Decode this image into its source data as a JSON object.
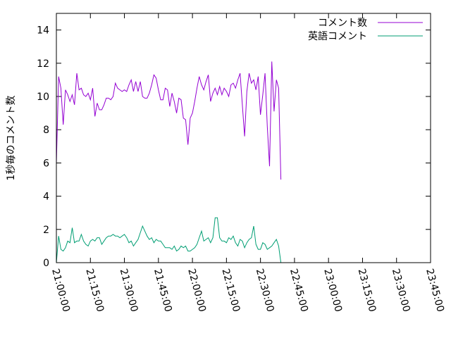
{
  "chart_data": {
    "type": "line",
    "title": "",
    "xlabel": "",
    "ylabel": "1秒毎のコメント数",
    "xlim": [
      "21:00:00",
      "23:45:00"
    ],
    "ylim": [
      0,
      15
    ],
    "x_ticks": [
      "21:00:00",
      "21:15:00",
      "21:30:00",
      "21:45:00",
      "22:00:00",
      "22:15:00",
      "22:30:00",
      "22:45:00",
      "23:00:00",
      "23:15:00",
      "23:30:00",
      "23:45:00"
    ],
    "y_ticks": [
      "0",
      "2",
      "4",
      "6",
      "8",
      "10",
      "12",
      "14"
    ],
    "legend_position": "top-right",
    "series": [
      {
        "name": "コメント数",
        "color": "#9400d3",
        "points": [
          [
            "21:00:00",
            6.0
          ],
          [
            "21:01:00",
            11.2
          ],
          [
            "21:02:00",
            10.5
          ],
          [
            "21:03:00",
            8.3
          ],
          [
            "21:04:00",
            10.4
          ],
          [
            "21:05:00",
            10.1
          ],
          [
            "21:06:00",
            9.7
          ],
          [
            "21:07:00",
            10.1
          ],
          [
            "21:08:00",
            9.5
          ],
          [
            "21:09:00",
            11.4
          ],
          [
            "21:10:00",
            10.4
          ],
          [
            "21:11:00",
            10.5
          ],
          [
            "21:12:00",
            10.1
          ],
          [
            "21:13:00",
            10.0
          ],
          [
            "21:14:00",
            10.2
          ],
          [
            "21:15:00",
            9.8
          ],
          [
            "21:16:00",
            10.5
          ],
          [
            "21:17:00",
            8.8
          ],
          [
            "21:18:00",
            9.6
          ],
          [
            "21:19:00",
            9.2
          ],
          [
            "21:20:00",
            9.2
          ],
          [
            "21:21:00",
            9.5
          ],
          [
            "21:22:00",
            9.9
          ],
          [
            "21:23:00",
            9.9
          ],
          [
            "21:24:00",
            9.8
          ],
          [
            "21:25:00",
            10.0
          ],
          [
            "21:26:00",
            10.8
          ],
          [
            "21:27:00",
            10.5
          ],
          [
            "21:28:00",
            10.4
          ],
          [
            "21:29:00",
            10.3
          ],
          [
            "21:30:00",
            10.4
          ],
          [
            "21:31:00",
            10.3
          ],
          [
            "21:32:00",
            10.7
          ],
          [
            "21:33:00",
            11.0
          ],
          [
            "21:34:00",
            10.3
          ],
          [
            "21:35:00",
            10.9
          ],
          [
            "21:36:00",
            10.3
          ],
          [
            "21:37:00",
            10.9
          ],
          [
            "21:38:00",
            10.0
          ],
          [
            "21:39:00",
            9.9
          ],
          [
            "21:40:00",
            9.9
          ],
          [
            "21:41:00",
            10.2
          ],
          [
            "21:42:00",
            10.7
          ],
          [
            "21:43:00",
            11.3
          ],
          [
            "21:44:00",
            11.1
          ],
          [
            "21:45:00",
            10.4
          ],
          [
            "21:46:00",
            9.8
          ],
          [
            "21:47:00",
            9.8
          ],
          [
            "21:48:00",
            10.5
          ],
          [
            "21:49:00",
            10.4
          ],
          [
            "21:50:00",
            9.4
          ],
          [
            "21:51:00",
            10.2
          ],
          [
            "21:52:00",
            9.7
          ],
          [
            "21:53:00",
            9.0
          ],
          [
            "21:54:00",
            9.9
          ],
          [
            "21:55:00",
            9.8
          ],
          [
            "21:56:00",
            8.7
          ],
          [
            "21:57:00",
            8.6
          ],
          [
            "21:58:00",
            7.1
          ],
          [
            "21:59:00",
            8.7
          ],
          [
            "22:00:00",
            9.0
          ],
          [
            "22:01:00",
            9.7
          ],
          [
            "22:02:00",
            10.5
          ],
          [
            "22:03:00",
            11.2
          ],
          [
            "22:04:00",
            10.7
          ],
          [
            "22:05:00",
            10.4
          ],
          [
            "22:06:00",
            10.9
          ],
          [
            "22:07:00",
            11.3
          ],
          [
            "22:08:00",
            9.7
          ],
          [
            "22:09:00",
            10.2
          ],
          [
            "22:10:00",
            10.5
          ],
          [
            "22:11:00",
            10.1
          ],
          [
            "22:12:00",
            10.6
          ],
          [
            "22:13:00",
            10.1
          ],
          [
            "22:14:00",
            10.5
          ],
          [
            "22:15:00",
            10.3
          ],
          [
            "22:16:00",
            10.0
          ],
          [
            "22:17:00",
            10.7
          ],
          [
            "22:18:00",
            10.8
          ],
          [
            "22:19:00",
            10.5
          ],
          [
            "22:20:00",
            11.0
          ],
          [
            "22:21:00",
            11.4
          ],
          [
            "22:22:00",
            9.5
          ],
          [
            "22:23:00",
            7.6
          ],
          [
            "22:24:00",
            10.3
          ],
          [
            "22:25:00",
            11.4
          ],
          [
            "22:26:00",
            10.8
          ],
          [
            "22:27:00",
            11.0
          ],
          [
            "22:28:00",
            10.4
          ],
          [
            "22:29:00",
            11.2
          ],
          [
            "22:30:00",
            8.9
          ],
          [
            "22:31:00",
            10.1
          ],
          [
            "22:32:00",
            11.4
          ],
          [
            "22:33:00",
            8.2
          ],
          [
            "22:34:00",
            5.8
          ],
          [
            "22:35:00",
            12.1
          ],
          [
            "22:36:00",
            9.1
          ],
          [
            "22:37:00",
            11.0
          ],
          [
            "22:38:00",
            10.5
          ],
          [
            "22:39:00",
            5.0
          ]
        ]
      },
      {
        "name": "英語コメント",
        "color": "#009e73",
        "points": [
          [
            "21:00:00",
            0.0
          ],
          [
            "21:01:00",
            1.6
          ],
          [
            "21:02:00",
            0.8
          ],
          [
            "21:03:00",
            0.7
          ],
          [
            "21:04:00",
            0.9
          ],
          [
            "21:05:00",
            1.3
          ],
          [
            "21:06:00",
            1.2
          ],
          [
            "21:07:00",
            2.1
          ],
          [
            "21:08:00",
            1.2
          ],
          [
            "21:09:00",
            1.3
          ],
          [
            "21:10:00",
            1.3
          ],
          [
            "21:11:00",
            1.7
          ],
          [
            "21:12:00",
            1.3
          ],
          [
            "21:13:00",
            1.1
          ],
          [
            "21:14:00",
            1.0
          ],
          [
            "21:15:00",
            1.3
          ],
          [
            "21:16:00",
            1.4
          ],
          [
            "21:17:00",
            1.3
          ],
          [
            "21:18:00",
            1.5
          ],
          [
            "21:19:00",
            1.5
          ],
          [
            "21:20:00",
            1.1
          ],
          [
            "21:21:00",
            1.3
          ],
          [
            "21:22:00",
            1.5
          ],
          [
            "21:23:00",
            1.6
          ],
          [
            "21:24:00",
            1.6
          ],
          [
            "21:25:00",
            1.7
          ],
          [
            "21:26:00",
            1.6
          ],
          [
            "21:27:00",
            1.6
          ],
          [
            "21:28:00",
            1.5
          ],
          [
            "21:29:00",
            1.6
          ],
          [
            "21:30:00",
            1.7
          ],
          [
            "21:31:00",
            1.5
          ],
          [
            "21:32:00",
            1.2
          ],
          [
            "21:33:00",
            1.3
          ],
          [
            "21:34:00",
            1.0
          ],
          [
            "21:35:00",
            1.2
          ],
          [
            "21:36:00",
            1.4
          ],
          [
            "21:37:00",
            1.8
          ],
          [
            "21:38:00",
            2.2
          ],
          [
            "21:39:00",
            1.9
          ],
          [
            "21:40:00",
            1.6
          ],
          [
            "21:41:00",
            1.4
          ],
          [
            "21:42:00",
            1.5
          ],
          [
            "21:43:00",
            1.2
          ],
          [
            "21:44:00",
            1.4
          ],
          [
            "21:45:00",
            1.3
          ],
          [
            "21:46:00",
            1.3
          ],
          [
            "21:47:00",
            1.1
          ],
          [
            "21:48:00",
            0.9
          ],
          [
            "21:49:00",
            0.9
          ],
          [
            "21:50:00",
            0.9
          ],
          [
            "21:51:00",
            0.8
          ],
          [
            "21:52:00",
            1.0
          ],
          [
            "21:53:00",
            0.7
          ],
          [
            "21:54:00",
            0.8
          ],
          [
            "21:55:00",
            1.0
          ],
          [
            "21:56:00",
            0.9
          ],
          [
            "21:57:00",
            1.0
          ],
          [
            "21:58:00",
            0.7
          ],
          [
            "21:59:00",
            0.7
          ],
          [
            "22:00:00",
            0.8
          ],
          [
            "22:01:00",
            0.9
          ],
          [
            "22:02:00",
            1.1
          ],
          [
            "22:03:00",
            1.5
          ],
          [
            "22:04:00",
            1.9
          ],
          [
            "22:05:00",
            1.3
          ],
          [
            "22:06:00",
            1.4
          ],
          [
            "22:07:00",
            1.5
          ],
          [
            "22:08:00",
            1.2
          ],
          [
            "22:09:00",
            1.5
          ],
          [
            "22:10:00",
            2.7
          ],
          [
            "22:11:00",
            2.7
          ],
          [
            "22:12:00",
            1.5
          ],
          [
            "22:13:00",
            1.3
          ],
          [
            "22:14:00",
            1.3
          ],
          [
            "22:15:00",
            1.2
          ],
          [
            "22:16:00",
            1.5
          ],
          [
            "22:17:00",
            1.4
          ],
          [
            "22:18:00",
            1.6
          ],
          [
            "22:19:00",
            1.2
          ],
          [
            "22:20:00",
            1.0
          ],
          [
            "22:21:00",
            1.4
          ],
          [
            "22:22:00",
            1.3
          ],
          [
            "22:23:00",
            0.9
          ],
          [
            "22:24:00",
            1.2
          ],
          [
            "22:25:00",
            1.4
          ],
          [
            "22:26:00",
            1.5
          ],
          [
            "22:27:00",
            2.2
          ],
          [
            "22:28:00",
            1.1
          ],
          [
            "22:29:00",
            0.8
          ],
          [
            "22:30:00",
            0.8
          ],
          [
            "22:31:00",
            1.2
          ],
          [
            "22:32:00",
            1.1
          ],
          [
            "22:33:00",
            0.8
          ],
          [
            "22:34:00",
            0.9
          ],
          [
            "22:35:00",
            1.0
          ],
          [
            "22:36:00",
            1.2
          ],
          [
            "22:37:00",
            1.4
          ],
          [
            "22:38:00",
            1.0
          ],
          [
            "22:39:00",
            0.0
          ]
        ]
      }
    ]
  }
}
